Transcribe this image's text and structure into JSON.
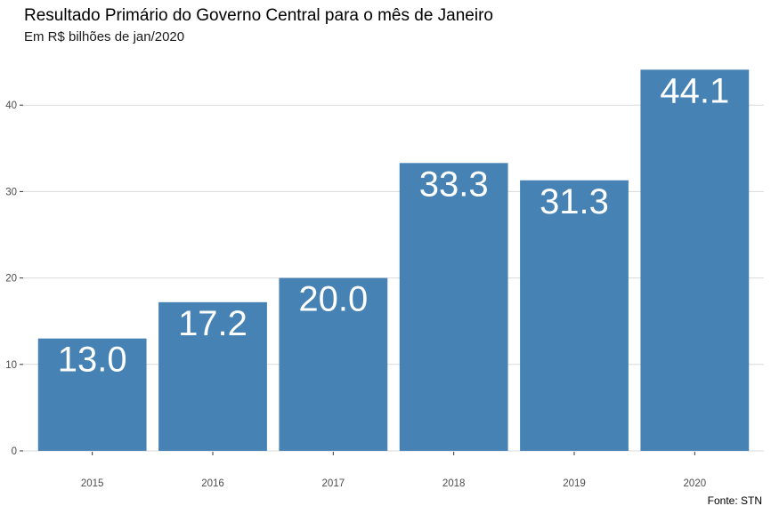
{
  "chart_data": {
    "type": "bar",
    "title": "Resultado Primário do Governo Central para o mês de Janeiro",
    "subtitle": "Em R$ bilhões de jan/2020",
    "caption": "Fonte: STN",
    "xlabel": "",
    "ylabel": "",
    "categories": [
      "2015",
      "2016",
      "2017",
      "2018",
      "2019",
      "2020"
    ],
    "values": [
      13.0,
      17.2,
      20.0,
      33.3,
      31.3,
      44.1
    ],
    "data_labels": [
      "13.0",
      "17.2",
      "20.0",
      "33.3",
      "31.3",
      "44.1"
    ],
    "yticks": [
      0,
      10,
      20,
      30,
      40
    ],
    "ylim": [
      0,
      45
    ],
    "grid": "horizontal major",
    "legend": "none",
    "bar_color": "#4682B4",
    "grid_color": "#d9d9d9"
  }
}
